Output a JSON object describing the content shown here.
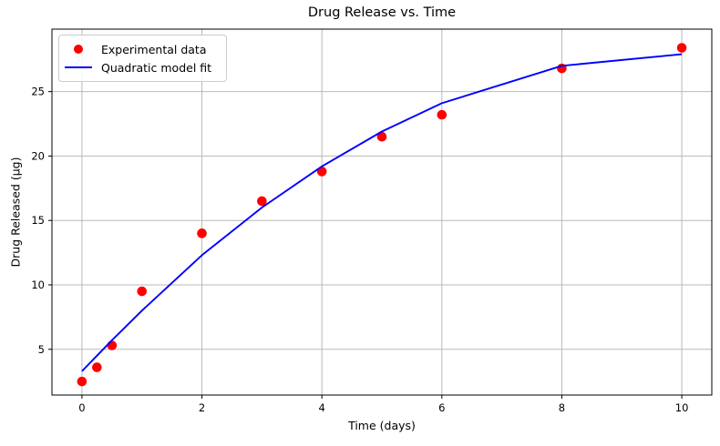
{
  "chart_data": {
    "type": "scatter",
    "title": "Drug Release vs. Time",
    "xlabel": "Time (days)",
    "ylabel": "Drug Released (µg)",
    "x": [
      0,
      0.25,
      0.5,
      1,
      2,
      3,
      4,
      5,
      6,
      8,
      10
    ],
    "series": [
      {
        "name": "Experimental data",
        "kind": "scatter",
        "marker": "circle",
        "color": "#ff0000",
        "y": [
          2.5,
          3.6,
          5.3,
          9.5,
          14.0,
          16.5,
          18.8,
          21.5,
          23.2,
          26.8,
          28.4
        ]
      },
      {
        "name": "Quadratic model fit",
        "kind": "line",
        "color": "#0000ff",
        "y": [
          3.3,
          4.5,
          5.7,
          8.0,
          12.3,
          16.0,
          19.2,
          21.9,
          24.1,
          27.0,
          27.9
        ]
      }
    ],
    "xticks": [
      0,
      2,
      4,
      6,
      8,
      10
    ],
    "yticks": [
      5,
      10,
      15,
      20,
      25
    ],
    "xlim": [
      -0.5,
      10.5
    ],
    "ylim": [
      1.45,
      29.85
    ],
    "grid": true,
    "legend_position": "upper left",
    "colors": {
      "grid": "#b9b9b9",
      "spine": "#000000",
      "text": "#000000",
      "background": "#ffffff"
    }
  }
}
